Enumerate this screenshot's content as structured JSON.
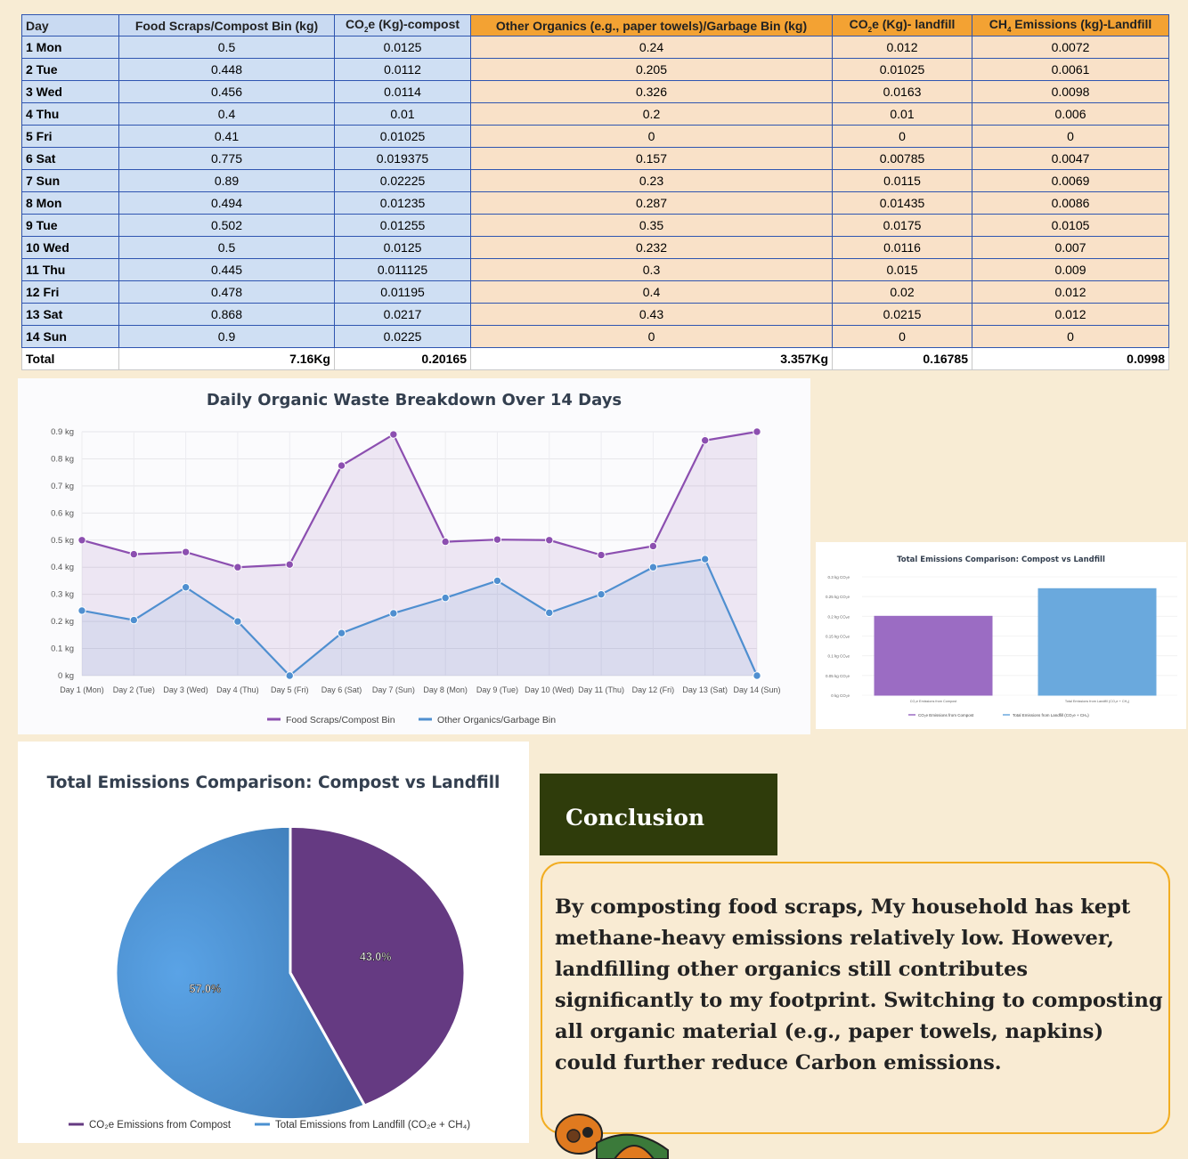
{
  "table": {
    "headers": [
      {
        "label": "Day",
        "tone": "b",
        "sub": ""
      },
      {
        "label": "Food Scraps/Compost Bin (kg)",
        "tone": "b",
        "sub": ""
      },
      {
        "label": "CO2e (Kg)-compost",
        "tone": "b",
        "sub": "2"
      },
      {
        "label": "Other Organics (e.g., paper towels)/Garbage Bin (kg)",
        "tone": "o",
        "sub": ""
      },
      {
        "label": "CO2e (Kg)- landfill",
        "tone": "o",
        "sub": "2"
      },
      {
        "label": "CH4 Emissions (kg)-Landfill",
        "tone": "o",
        "sub": "4"
      }
    ],
    "rows": [
      [
        "1 Mon",
        "0.5",
        "0.0125",
        "0.24",
        "0.012",
        "0.0072"
      ],
      [
        "2 Tue",
        "0.448",
        "0.0112",
        "0.205",
        "0.01025",
        "0.0061"
      ],
      [
        "3 Wed",
        "0.456",
        "0.0114",
        "0.326",
        "0.0163",
        "0.0098"
      ],
      [
        "4 Thu",
        "0.4",
        "0.01",
        "0.2",
        "0.01",
        "0.006"
      ],
      [
        "5 Fri",
        "0.41",
        "0.01025",
        "0",
        "0",
        "0"
      ],
      [
        "6 Sat",
        "0.775",
        "0.019375",
        "0.157",
        "0.00785",
        "0.0047"
      ],
      [
        "7 Sun",
        "0.89",
        "0.02225",
        "0.23",
        "0.0115",
        "0.0069"
      ],
      [
        "8 Mon",
        "0.494",
        "0.01235",
        "0.287",
        "0.01435",
        "0.0086"
      ],
      [
        "9 Tue",
        "0.502",
        "0.01255",
        "0.35",
        "0.0175",
        "0.0105"
      ],
      [
        "10 Wed",
        "0.5",
        "0.0125",
        "0.232",
        "0.0116",
        "0.007"
      ],
      [
        "11 Thu",
        "0.445",
        "0.011125",
        "0.3",
        "0.015",
        "0.009"
      ],
      [
        "12 Fri",
        "0.478",
        "0.01195",
        "0.4",
        "0.02",
        "0.012"
      ],
      [
        "13 Sat",
        "0.868",
        "0.0217",
        "0.43",
        "0.0215",
        "0.012"
      ],
      [
        "14 Sun",
        "0.9",
        "0.0225",
        "0",
        "0",
        "0"
      ]
    ],
    "total": [
      "Total",
      "7.16Kg",
      "0.20165",
      "3.357Kg",
      "0.16785",
      "0.0998"
    ]
  },
  "colors": {
    "purple": "#8c4fb0",
    "blue": "#4f8fd0",
    "bar_purple": "#9b6cc3",
    "bar_blue": "#6aa9dd",
    "pie_purple": "#653a82",
    "pie_blue": "#3d7ab5",
    "conclusion_bg": "#2f3c0b",
    "conclusion_border": "#f2ad22"
  },
  "chart_data": [
    {
      "type": "area",
      "title": "Daily Organic Waste Breakdown Over 14 Days",
      "categories": [
        "Day 1 (Mon)",
        "Day 2 (Tue)",
        "Day 3 (Wed)",
        "Day 4 (Thu)",
        "Day 5 (Fri)",
        "Day 6 (Sat)",
        "Day 7 (Sun)",
        "Day 8 (Mon)",
        "Day 9 (Tue)",
        "Day 10 (Wed)",
        "Day 11 (Thu)",
        "Day 12 (Fri)",
        "Day 13 (Sat)",
        "Day 14 (Sun)"
      ],
      "series": [
        {
          "name": "Food Scraps/Compost Bin",
          "values": [
            0.5,
            0.448,
            0.456,
            0.4,
            0.41,
            0.775,
            0.89,
            0.494,
            0.502,
            0.5,
            0.445,
            0.478,
            0.868,
            0.9
          ]
        },
        {
          "name": "Other Organics/Garbage Bin",
          "values": [
            0.24,
            0.205,
            0.326,
            0.2,
            0,
            0.157,
            0.23,
            0.287,
            0.35,
            0.232,
            0.3,
            0.4,
            0.43,
            0
          ]
        }
      ],
      "ylim": [
        0,
        0.9
      ],
      "yticks": [
        "0 kg",
        "0.1 kg",
        "0.2 kg",
        "0.3 kg",
        "0.4 kg",
        "0.5 kg",
        "0.6 kg",
        "0.7 kg",
        "0.8 kg",
        "0.9 kg"
      ],
      "grid": true,
      "legend": "bottom"
    },
    {
      "type": "bar",
      "title": "Total Emissions Comparison: Compost vs Landfill",
      "categories": [
        "CO₂e Emissions from Compost",
        "Total Emissions from Landfill (CO₂e + CH₄)"
      ],
      "values": [
        0.2,
        0.27
      ],
      "ylim": [
        0,
        0.3
      ],
      "yticks": [
        "0 kg CO₂e",
        "0.05 kg CO₂e",
        "0.1 kg CO₂e",
        "0.15 kg CO₂e",
        "0.2 kg CO₂e",
        "0.25 kg CO₂e",
        "0.3 kg CO₂e"
      ],
      "legend": "bottom",
      "legend_entries": [
        "CO₂e Emissions from Compost",
        "Total Emissions from Landfill (CO₂e + CH₄)"
      ]
    },
    {
      "type": "pie",
      "title": "Total Emissions Comparison: Compost vs Landfill",
      "labels": [
        "CO₂e Emissions from Compost",
        "Total Emissions from Landfill (CO₂e + CH₄)"
      ],
      "values": [
        43.0,
        57.0
      ],
      "value_labels": [
        "43.0%",
        "57.0%"
      ],
      "legend": "bottom"
    }
  ],
  "conclusion": {
    "heading": "Conclusion",
    "text": "By composting food scraps, My household has kept methane-heavy emissions relatively low. However, landfilling other organics still contributes significantly to my footprint. Switching to composting all organic material (e.g., paper towels, napkins) could further reduce Carbon emissions."
  }
}
